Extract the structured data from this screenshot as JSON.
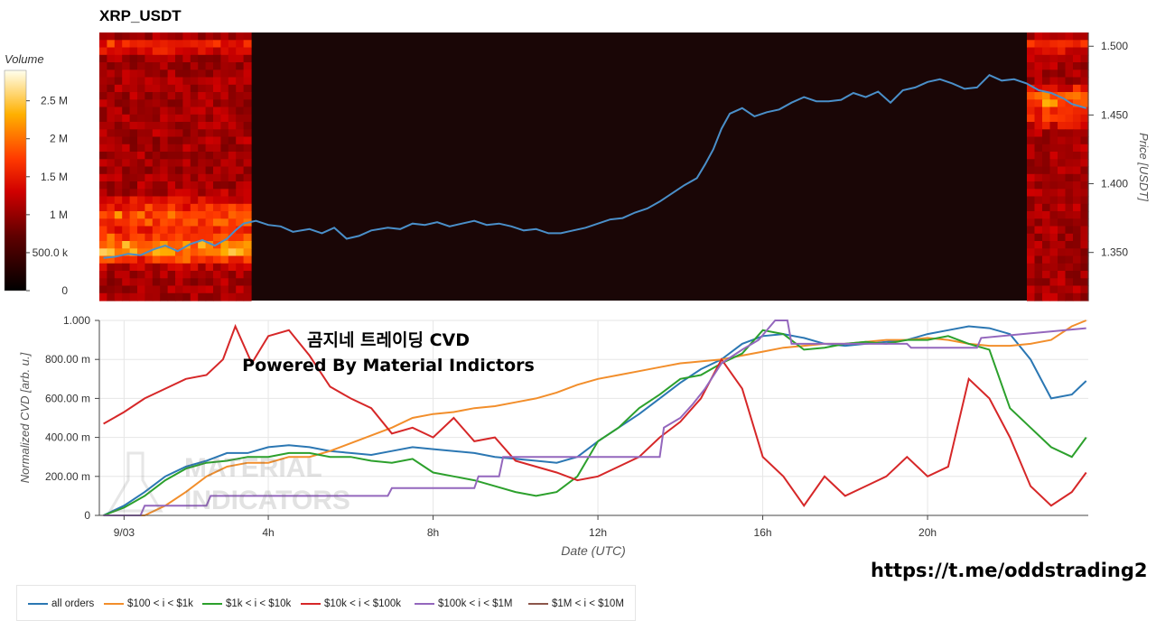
{
  "chart_data": [
    {
      "type": "heatmap",
      "title": "XRP_USDT",
      "ylabel": "Price [USDT]",
      "ylim": [
        1.315,
        1.51
      ],
      "y_ticks": [
        1.35,
        1.4,
        1.45,
        1.5
      ],
      "y_tick_labels": [
        "1.350",
        "1.400",
        "1.450",
        "1.500"
      ],
      "colorbar": {
        "label": "Volume",
        "range": [
          0,
          2900000
        ],
        "ticks": [
          0,
          500000,
          1000000,
          1500000,
          2000000,
          2500000
        ],
        "tick_labels": [
          "0",
          "500.0 k",
          "1 M",
          "1.5 M",
          "2 M",
          "2.5 M"
        ]
      },
      "price_series": {
        "color": "#4a8fc9",
        "x": [
          0.0,
          0.3,
          0.6,
          0.9,
          1.2,
          1.5,
          1.8,
          2.1,
          2.4,
          2.7,
          3.0,
          3.2,
          3.4,
          3.7,
          4.0,
          4.3,
          4.6,
          5.0,
          5.3,
          5.6,
          5.9,
          6.2,
          6.5,
          6.9,
          7.2,
          7.5,
          7.8,
          8.1,
          8.4,
          8.7,
          9.0,
          9.3,
          9.6,
          9.9,
          10.2,
          10.5,
          10.8,
          11.1,
          11.4,
          11.7,
          12.0,
          12.3,
          12.6,
          12.9,
          13.2,
          13.5,
          13.8,
          14.1,
          14.4,
          14.6,
          14.8,
          15.0,
          15.2,
          15.5,
          15.8,
          16.1,
          16.4,
          16.7,
          17.0,
          17.3,
          17.6,
          17.9,
          18.2,
          18.5,
          18.8,
          19.1,
          19.4,
          19.7,
          20.0,
          20.3,
          20.6,
          20.9,
          21.2,
          21.5,
          21.8,
          22.1,
          22.4,
          22.7,
          23.0,
          23.3,
          23.5,
          23.85
        ],
        "y": [
          1.346,
          1.347,
          1.349,
          1.348,
          1.352,
          1.355,
          1.351,
          1.356,
          1.359,
          1.355,
          1.36,
          1.366,
          1.371,
          1.373,
          1.37,
          1.369,
          1.365,
          1.367,
          1.364,
          1.368,
          1.36,
          1.362,
          1.366,
          1.368,
          1.367,
          1.371,
          1.37,
          1.372,
          1.369,
          1.371,
          1.373,
          1.37,
          1.371,
          1.369,
          1.366,
          1.367,
          1.364,
          1.364,
          1.366,
          1.368,
          1.371,
          1.374,
          1.375,
          1.379,
          1.382,
          1.387,
          1.393,
          1.399,
          1.404,
          1.414,
          1.425,
          1.44,
          1.451,
          1.455,
          1.449,
          1.452,
          1.454,
          1.459,
          1.463,
          1.46,
          1.46,
          1.461,
          1.466,
          1.463,
          1.467,
          1.459,
          1.468,
          1.47,
          1.474,
          1.476,
          1.473,
          1.469,
          1.47,
          1.479,
          1.475,
          1.476,
          1.473,
          1.468,
          1.466,
          1.462,
          1.458,
          1.455
        ]
      },
      "x_range_hours": [
        -0.1,
        23.9
      ]
    },
    {
      "type": "line",
      "xlabel": "Date (UTC)",
      "ylabel": "Normalized CVD [arb. u.]",
      "ylim": [
        0,
        1
      ],
      "y_ticks": [
        0,
        0.2,
        0.4,
        0.6,
        0.8,
        1.0
      ],
      "y_tick_labels": [
        "0",
        "200.00 m",
        "400.00 m",
        "600.00 m",
        "800.00 m",
        "1.000"
      ],
      "x_range_hours": [
        -0.1,
        23.9
      ],
      "x_ticks": [
        0.5,
        4,
        8,
        12,
        16,
        20
      ],
      "x_tick_labels": [
        "9/03",
        "4h",
        "8h",
        "12h",
        "16h",
        "20h"
      ],
      "series": [
        {
          "name": "all orders",
          "color": "#2b77b3",
          "x": [
            0,
            0.5,
            1,
            1.5,
            2,
            2.5,
            3,
            3.5,
            4,
            4.5,
            5,
            5.5,
            6,
            6.5,
            7,
            7.5,
            8,
            8.5,
            9,
            9.5,
            10,
            10.5,
            11,
            11.5,
            12,
            12.5,
            13,
            13.5,
            14,
            14.5,
            15,
            15.5,
            16,
            16.5,
            17,
            17.5,
            18,
            18.5,
            19,
            19.5,
            20,
            20.5,
            21,
            21.5,
            22,
            22.5,
            23,
            23.5,
            23.85
          ],
          "y": [
            0.0,
            0.05,
            0.12,
            0.2,
            0.25,
            0.28,
            0.32,
            0.32,
            0.35,
            0.36,
            0.35,
            0.33,
            0.32,
            0.31,
            0.33,
            0.35,
            0.34,
            0.33,
            0.32,
            0.3,
            0.29,
            0.28,
            0.27,
            0.3,
            0.38,
            0.45,
            0.52,
            0.6,
            0.68,
            0.75,
            0.8,
            0.88,
            0.92,
            0.93,
            0.91,
            0.88,
            0.87,
            0.88,
            0.89,
            0.9,
            0.93,
            0.95,
            0.97,
            0.96,
            0.93,
            0.8,
            0.6,
            0.62,
            0.69
          ]
        },
        {
          "name": "$100 < i < $1k",
          "color": "#f28e2b",
          "x": [
            0,
            0.5,
            1,
            1.5,
            2,
            2.5,
            3,
            3.5,
            4,
            4.5,
            5,
            5.5,
            6,
            6.5,
            7,
            7.5,
            8,
            8.5,
            9,
            9.5,
            10,
            10.5,
            11,
            11.5,
            12,
            12.5,
            13,
            13.5,
            14,
            14.5,
            15,
            15.5,
            16,
            16.5,
            17,
            17.5,
            18,
            18.5,
            19,
            19.5,
            20,
            20.5,
            21,
            21.5,
            22,
            22.5,
            23,
            23.5,
            23.85
          ],
          "y": [
            0.0,
            0.0,
            0.0,
            0.05,
            0.12,
            0.2,
            0.25,
            0.27,
            0.27,
            0.3,
            0.3,
            0.33,
            0.37,
            0.41,
            0.45,
            0.5,
            0.52,
            0.53,
            0.55,
            0.56,
            0.58,
            0.6,
            0.63,
            0.67,
            0.7,
            0.72,
            0.74,
            0.76,
            0.78,
            0.79,
            0.8,
            0.82,
            0.84,
            0.86,
            0.87,
            0.88,
            0.88,
            0.89,
            0.9,
            0.9,
            0.91,
            0.9,
            0.88,
            0.87,
            0.87,
            0.88,
            0.9,
            0.97,
            1.0
          ]
        },
        {
          "name": "$1k < i < $10k",
          "color": "#2ca02c",
          "x": [
            0,
            0.5,
            1,
            1.5,
            2,
            2.5,
            3,
            3.5,
            4,
            4.5,
            5,
            5.5,
            6,
            6.5,
            7,
            7.5,
            8,
            8.5,
            9,
            9.5,
            10,
            10.5,
            11,
            11.5,
            12,
            12.5,
            13,
            13.5,
            14,
            14.5,
            15,
            15.5,
            16,
            16.5,
            17,
            17.5,
            18,
            18.5,
            19,
            19.5,
            20,
            20.5,
            21,
            21.5,
            22,
            22.5,
            23,
            23.5,
            23.85
          ],
          "y": [
            0.0,
            0.04,
            0.1,
            0.18,
            0.24,
            0.27,
            0.28,
            0.3,
            0.3,
            0.32,
            0.32,
            0.3,
            0.3,
            0.28,
            0.27,
            0.29,
            0.22,
            0.2,
            0.18,
            0.15,
            0.12,
            0.1,
            0.12,
            0.2,
            0.38,
            0.45,
            0.55,
            0.62,
            0.7,
            0.72,
            0.78,
            0.83,
            0.95,
            0.93,
            0.85,
            0.86,
            0.88,
            0.89,
            0.88,
            0.9,
            0.9,
            0.92,
            0.88,
            0.85,
            0.55,
            0.45,
            0.35,
            0.3,
            0.4
          ]
        },
        {
          "name": "$10k < i < $100k",
          "color": "#d62728",
          "x": [
            0,
            0.5,
            1,
            1.5,
            2,
            2.5,
            2.9,
            3.2,
            3.6,
            4,
            4.5,
            5,
            5.5,
            6,
            6.5,
            7,
            7.5,
            8,
            8.5,
            9,
            9.5,
            10,
            10.5,
            11,
            11.5,
            12,
            12.5,
            13,
            13.5,
            14,
            14.5,
            15,
            15.5,
            16,
            16.5,
            17,
            17.5,
            18,
            18.5,
            19,
            19.5,
            20,
            20.5,
            21,
            21.5,
            22,
            22.5,
            23,
            23.5,
            23.85
          ],
          "y": [
            0.47,
            0.53,
            0.6,
            0.65,
            0.7,
            0.72,
            0.8,
            0.97,
            0.78,
            0.92,
            0.95,
            0.82,
            0.66,
            0.6,
            0.55,
            0.42,
            0.45,
            0.4,
            0.5,
            0.38,
            0.4,
            0.28,
            0.25,
            0.22,
            0.18,
            0.2,
            0.25,
            0.3,
            0.4,
            0.48,
            0.6,
            0.8,
            0.65,
            0.3,
            0.2,
            0.05,
            0.2,
            0.1,
            0.15,
            0.2,
            0.3,
            0.2,
            0.25,
            0.7,
            0.6,
            0.4,
            0.15,
            0.05,
            0.12,
            0.22
          ]
        },
        {
          "name": "$100k < i < $1M",
          "color": "#9467bd",
          "x": [
            0,
            0.9,
            1.0,
            2.5,
            2.6,
            6.9,
            7.0,
            9.0,
            9.1,
            9.6,
            9.7,
            13.5,
            13.6,
            14.0,
            14.3,
            14.6,
            15.0,
            15.5,
            15.9,
            16.3,
            16.6,
            16.7,
            19.5,
            19.6,
            21.2,
            21.3,
            23.85
          ],
          "y": [
            0.0,
            0.0,
            0.05,
            0.05,
            0.1,
            0.1,
            0.14,
            0.14,
            0.2,
            0.2,
            0.3,
            0.3,
            0.45,
            0.5,
            0.57,
            0.65,
            0.78,
            0.85,
            0.9,
            1.0,
            1.0,
            0.88,
            0.88,
            0.86,
            0.86,
            0.91,
            0.96
          ]
        },
        {
          "name": "$1M < i < $10M",
          "color": "#8c564b",
          "x": [],
          "y": []
        }
      ]
    }
  ],
  "overlay": {
    "line1": "곰지네 트레이딩 CVD",
    "line2": "Powered By Material Indictors"
  },
  "watermark": {
    "line1": "MATERIAL",
    "line2": "INDICATORS"
  },
  "telegram": "https://t.me/oddstrading2"
}
